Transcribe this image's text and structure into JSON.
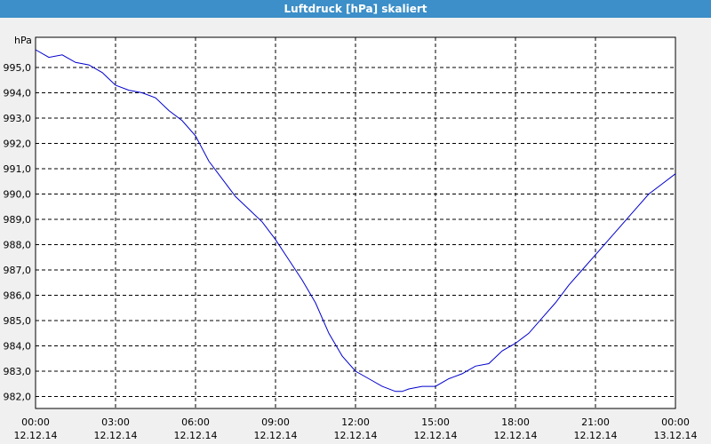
{
  "window": {
    "title": "Luftdruck [hPa] skaliert"
  },
  "chart_data": {
    "type": "line",
    "title": "Luftdruck [hPa] skaliert",
    "ylabel": "hPa",
    "xlabel": "",
    "ylim": [
      981.6,
      996.6
    ],
    "y_ticks": [
      "982,0",
      "983,0",
      "984,0",
      "985,0",
      "986,0",
      "987,0",
      "988,0",
      "989,0",
      "990,0",
      "991,0",
      "992,0",
      "993,0",
      "994,0",
      "995,0"
    ],
    "x_ticks": [
      {
        "time": "00:00",
        "date": "12.12.14"
      },
      {
        "time": "03:00",
        "date": "12.12.14"
      },
      {
        "time": "06:00",
        "date": "12.12.14"
      },
      {
        "time": "09:00",
        "date": "12.12.14"
      },
      {
        "time": "12:00",
        "date": "12.12.14"
      },
      {
        "time": "15:00",
        "date": "12.12.14"
      },
      {
        "time": "18:00",
        "date": "12.12.14"
      },
      {
        "time": "21:00",
        "date": "12.12.14"
      },
      {
        "time": "00:00",
        "date": "13.12.14"
      }
    ],
    "grid": true,
    "line_color": "#0000cc",
    "series": [
      {
        "x": [
          "00:00",
          "00:30",
          "01:00",
          "01:30",
          "02:00",
          "02:30",
          "03:00",
          "03:30",
          "04:00",
          "04:30",
          "05:00",
          "05:30",
          "06:00",
          "06:30",
          "07:00",
          "07:30",
          "08:00",
          "08:30",
          "09:00",
          "09:30",
          "10:00",
          "10:30",
          "11:00",
          "11:30",
          "12:00",
          "12:30",
          "13:00",
          "13:30",
          "13:45",
          "14:00",
          "14:30",
          "15:00",
          "15:30",
          "16:00",
          "16:30",
          "17:00",
          "17:30",
          "18:00",
          "18:30",
          "19:00",
          "19:30",
          "20:00",
          "20:30",
          "21:00",
          "21:30",
          "22:00",
          "22:30",
          "23:00",
          "23:30",
          "24:00"
        ],
        "values": [
          995.7,
          995.4,
          995.5,
          995.2,
          995.1,
          994.8,
          994.3,
          994.1,
          994.0,
          993.8,
          993.3,
          992.9,
          992.3,
          991.3,
          990.6,
          989.9,
          989.4,
          988.9,
          988.2,
          987.4,
          986.6,
          985.7,
          984.5,
          983.6,
          983.0,
          982.7,
          982.4,
          982.2,
          982.2,
          982.3,
          982.4,
          982.4,
          982.7,
          982.9,
          983.2,
          983.3,
          983.8,
          984.1,
          984.5,
          985.1,
          985.7,
          986.4,
          987.0,
          987.6,
          988.2,
          988.8,
          989.4,
          990.0,
          990.4,
          990.8
        ]
      }
    ]
  }
}
